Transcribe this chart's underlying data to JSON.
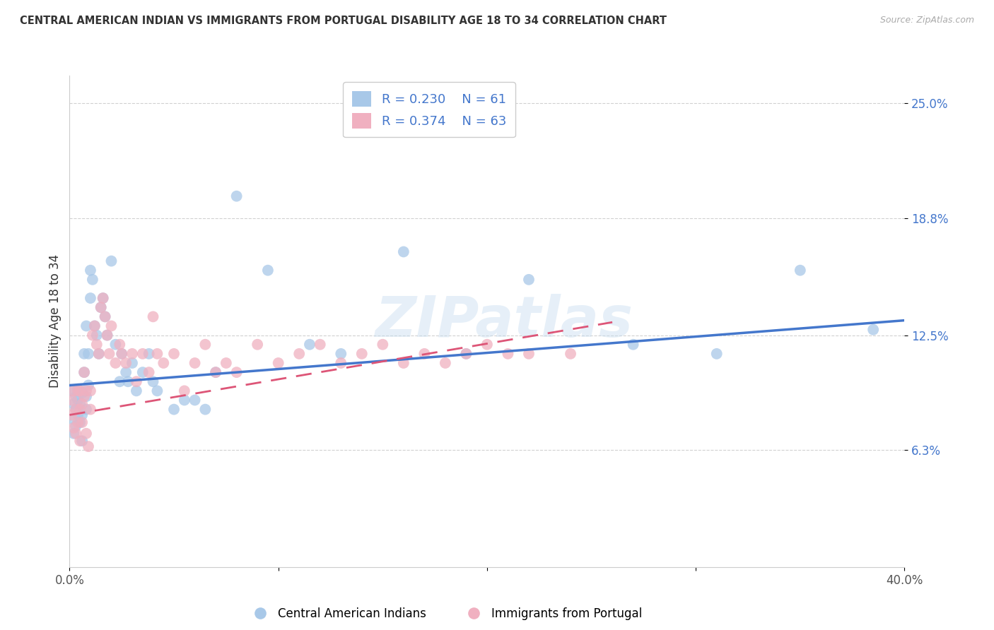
{
  "title": "CENTRAL AMERICAN INDIAN VS IMMIGRANTS FROM PORTUGAL DISABILITY AGE 18 TO 34 CORRELATION CHART",
  "source": "Source: ZipAtlas.com",
  "ylabel": "Disability Age 18 to 34",
  "xlim": [
    0.0,
    0.4
  ],
  "ylim": [
    0.0,
    0.265
  ],
  "yticks": [
    0.063,
    0.125,
    0.188,
    0.25
  ],
  "ytick_labels": [
    "6.3%",
    "12.5%",
    "18.8%",
    "25.0%"
  ],
  "xticks": [
    0.0,
    0.1,
    0.2,
    0.3,
    0.4
  ],
  "xtick_labels": [
    "0.0%",
    "",
    "",
    "",
    "40.0%"
  ],
  "legend_blue_R": "0.230",
  "legend_blue_N": "61",
  "legend_pink_R": "0.374",
  "legend_pink_N": "63",
  "legend_blue_label": "Central American Indians",
  "legend_pink_label": "Immigrants from Portugal",
  "blue_color": "#a8c8e8",
  "pink_color": "#f0b0c0",
  "blue_line_color": "#4477cc",
  "pink_line_color": "#dd5577",
  "watermark": "ZIPatlas",
  "background_color": "#ffffff",
  "blue_x": [
    0.001,
    0.001,
    0.002,
    0.002,
    0.003,
    0.003,
    0.003,
    0.004,
    0.004,
    0.004,
    0.005,
    0.005,
    0.005,
    0.006,
    0.006,
    0.006,
    0.007,
    0.007,
    0.008,
    0.008,
    0.008,
    0.009,
    0.009,
    0.01,
    0.01,
    0.011,
    0.012,
    0.013,
    0.014,
    0.015,
    0.016,
    0.017,
    0.018,
    0.02,
    0.022,
    0.024,
    0.025,
    0.027,
    0.028,
    0.03,
    0.032,
    0.035,
    0.038,
    0.04,
    0.042,
    0.05,
    0.055,
    0.06,
    0.065,
    0.07,
    0.08,
    0.095,
    0.115,
    0.13,
    0.16,
    0.19,
    0.22,
    0.27,
    0.31,
    0.35,
    0.385
  ],
  "blue_y": [
    0.095,
    0.08,
    0.088,
    0.072,
    0.085,
    0.092,
    0.076,
    0.09,
    0.082,
    0.096,
    0.088,
    0.078,
    0.095,
    0.082,
    0.068,
    0.094,
    0.105,
    0.115,
    0.092,
    0.085,
    0.13,
    0.098,
    0.115,
    0.145,
    0.16,
    0.155,
    0.13,
    0.125,
    0.115,
    0.14,
    0.145,
    0.135,
    0.125,
    0.165,
    0.12,
    0.1,
    0.115,
    0.105,
    0.1,
    0.11,
    0.095,
    0.105,
    0.115,
    0.1,
    0.095,
    0.085,
    0.09,
    0.09,
    0.085,
    0.105,
    0.2,
    0.16,
    0.12,
    0.115,
    0.17,
    0.115,
    0.155,
    0.12,
    0.115,
    0.16,
    0.128
  ],
  "pink_x": [
    0.001,
    0.001,
    0.002,
    0.002,
    0.003,
    0.003,
    0.004,
    0.004,
    0.005,
    0.005,
    0.005,
    0.006,
    0.006,
    0.007,
    0.007,
    0.008,
    0.008,
    0.009,
    0.01,
    0.01,
    0.011,
    0.012,
    0.013,
    0.014,
    0.015,
    0.016,
    0.017,
    0.018,
    0.019,
    0.02,
    0.022,
    0.024,
    0.025,
    0.027,
    0.03,
    0.032,
    0.035,
    0.038,
    0.04,
    0.042,
    0.045,
    0.05,
    0.055,
    0.06,
    0.065,
    0.07,
    0.075,
    0.08,
    0.09,
    0.1,
    0.11,
    0.12,
    0.13,
    0.14,
    0.15,
    0.16,
    0.17,
    0.18,
    0.19,
    0.2,
    0.21,
    0.22,
    0.24
  ],
  "pink_y": [
    0.09,
    0.082,
    0.095,
    0.075,
    0.085,
    0.072,
    0.095,
    0.078,
    0.068,
    0.085,
    0.095,
    0.088,
    0.078,
    0.105,
    0.092,
    0.072,
    0.095,
    0.065,
    0.085,
    0.095,
    0.125,
    0.13,
    0.12,
    0.115,
    0.14,
    0.145,
    0.135,
    0.125,
    0.115,
    0.13,
    0.11,
    0.12,
    0.115,
    0.11,
    0.115,
    0.1,
    0.115,
    0.105,
    0.135,
    0.115,
    0.11,
    0.115,
    0.095,
    0.11,
    0.12,
    0.105,
    0.11,
    0.105,
    0.12,
    0.11,
    0.115,
    0.12,
    0.11,
    0.115,
    0.12,
    0.11,
    0.115,
    0.11,
    0.115,
    0.12,
    0.115,
    0.115,
    0.115
  ],
  "blue_trendline_x": [
    0.0,
    0.4
  ],
  "blue_trendline_y": [
    0.098,
    0.133
  ],
  "pink_trendline_x": [
    0.0,
    0.26
  ],
  "pink_trendline_y": [
    0.082,
    0.132
  ]
}
